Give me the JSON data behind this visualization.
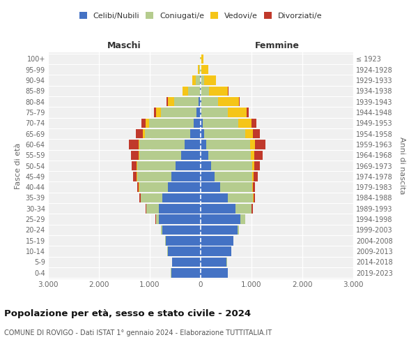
{
  "age_groups": [
    "0-4",
    "5-9",
    "10-14",
    "15-19",
    "20-24",
    "25-29",
    "30-34",
    "35-39",
    "40-44",
    "45-49",
    "50-54",
    "55-59",
    "60-64",
    "65-69",
    "70-74",
    "75-79",
    "80-84",
    "85-89",
    "90-94",
    "95-99",
    "100+"
  ],
  "birth_years": [
    "2019-2023",
    "2014-2018",
    "2009-2013",
    "2004-2008",
    "1999-2003",
    "1994-1998",
    "1989-1993",
    "1984-1988",
    "1979-1983",
    "1974-1978",
    "1969-1973",
    "1964-1968",
    "1959-1963",
    "1954-1958",
    "1949-1953",
    "1944-1948",
    "1939-1943",
    "1934-1938",
    "1929-1933",
    "1924-1928",
    "≤ 1923"
  ],
  "maschi": {
    "celibi": [
      580,
      560,
      650,
      690,
      760,
      820,
      820,
      750,
      640,
      570,
      490,
      380,
      320,
      200,
      140,
      80,
      40,
      18,
      8,
      3,
      1
    ],
    "coniugati": [
      5,
      5,
      3,
      5,
      20,
      60,
      250,
      430,
      570,
      680,
      760,
      820,
      880,
      900,
      870,
      700,
      480,
      230,
      90,
      28,
      6
    ],
    "vedovi": [
      0,
      0,
      0,
      0,
      1,
      2,
      4,
      4,
      6,
      8,
      12,
      16,
      22,
      40,
      70,
      100,
      130,
      105,
      60,
      25,
      8
    ],
    "divorziati": [
      0,
      0,
      0,
      0,
      3,
      8,
      15,
      22,
      30,
      65,
      100,
      150,
      190,
      130,
      85,
      40,
      15,
      6,
      2,
      1,
      0
    ]
  },
  "femmine": {
    "nubili": [
      530,
      510,
      600,
      640,
      720,
      780,
      680,
      530,
      380,
      280,
      210,
      155,
      110,
      70,
      40,
      18,
      8,
      4,
      2,
      1,
      1
    ],
    "coniugate": [
      5,
      5,
      3,
      5,
      30,
      90,
      320,
      500,
      640,
      740,
      800,
      830,
      860,
      800,
      700,
      520,
      330,
      165,
      60,
      18,
      4
    ],
    "vedove": [
      0,
      0,
      0,
      0,
      1,
      3,
      5,
      7,
      14,
      22,
      40,
      65,
      100,
      160,
      260,
      360,
      410,
      370,
      240,
      125,
      52
    ],
    "divorziate": [
      0,
      0,
      0,
      0,
      3,
      10,
      18,
      28,
      40,
      80,
      120,
      175,
      210,
      140,
      90,
      44,
      16,
      6,
      2,
      1,
      0
    ]
  },
  "colors": {
    "celibi": "#4472c4",
    "coniugati": "#b5cc8e",
    "vedovi": "#f5c518",
    "divorziati": "#c0392b"
  },
  "xlim": 3000,
  "title": "Popolazione per età, sesso e stato civile - 2024",
  "subtitle": "COMUNE DI ROVIGO - Dati ISTAT 1° gennaio 2024 - Elaborazione TUTTITALIA.IT",
  "ylabel_left": "Fasce di età",
  "ylabel_right": "Anni di nascita",
  "legend_labels": [
    "Celibi/Nubili",
    "Coniugati/e",
    "Vedovi/e",
    "Divorziati/e"
  ],
  "maschi_label": "Maschi",
  "femmine_label": "Femmine",
  "background_color": "#f0f0f0"
}
